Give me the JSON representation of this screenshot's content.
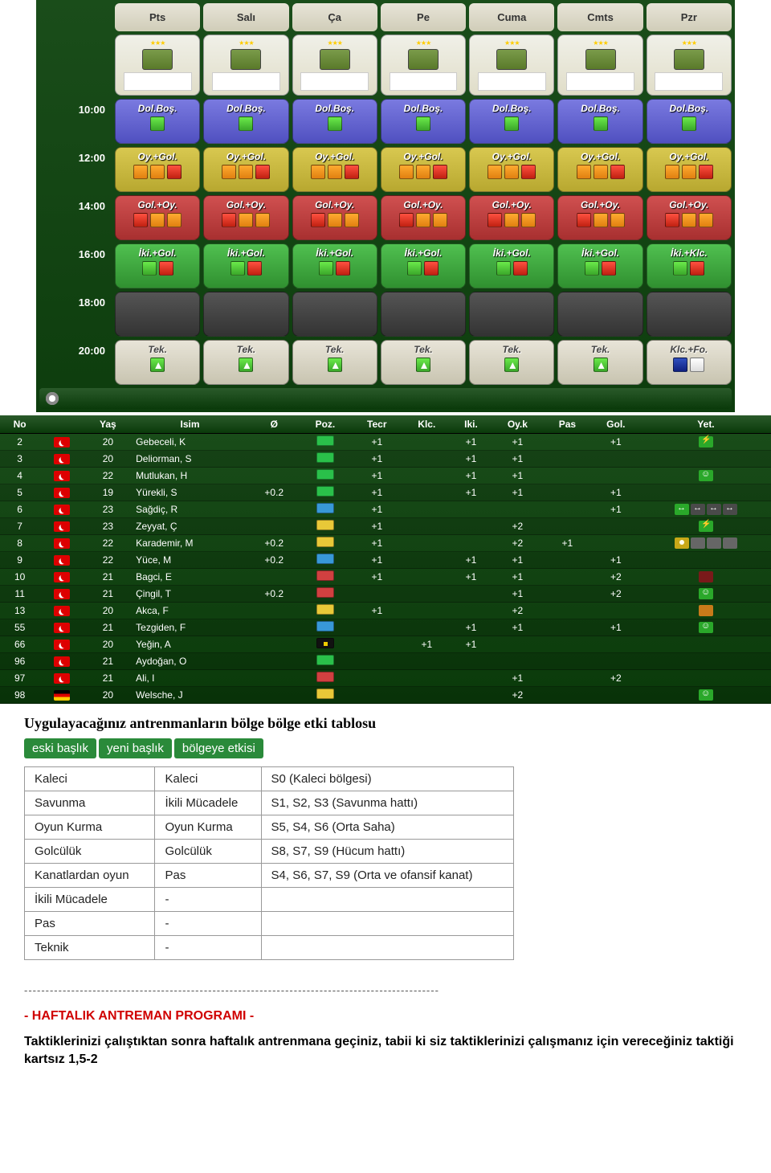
{
  "schedule": {
    "days": [
      "Pts",
      "Salı",
      "Ça",
      "Pe",
      "Cuma",
      "Cmts",
      "Pzr"
    ],
    "times": [
      "",
      "10:00",
      "12:00",
      "14:00",
      "16:00",
      "18:00",
      "20:00"
    ],
    "rows": [
      {
        "type": "card"
      },
      {
        "type": "slot",
        "style": "blue",
        "label": "Dol.Boş.",
        "icons": [
          "green"
        ],
        "labels": [
          "Dol.Boş.",
          "Dol.Boş.",
          "Dol.Boş.",
          "Dol.Boş.",
          "Dol.Boş.",
          "Dol.Boş.",
          "Dol.Boş."
        ]
      },
      {
        "type": "slot",
        "style": "yellow",
        "label": "Oy.+Gol.",
        "icons": [
          "orange",
          "orange",
          "red"
        ],
        "labels": [
          "Oy.+Gol.",
          "Oy.+Gol.",
          "Oy.+Gol.",
          "Oy.+Gol.",
          "Oy.+Gol.",
          "Oy.+Gol.",
          "Oy.+Gol."
        ]
      },
      {
        "type": "slot",
        "style": "red",
        "label": "Gol.+Oy.",
        "icons": [
          "red",
          "orange",
          "orange"
        ],
        "labels": [
          "Gol.+Oy.",
          "Gol.+Oy.",
          "Gol.+Oy.",
          "Gol.+Oy.",
          "Gol.+Oy.",
          "Gol.+Oy.",
          "Gol.+Oy."
        ]
      },
      {
        "type": "slot",
        "style": "green",
        "label": "İki.+Gol.",
        "icons": [
          "green",
          "red"
        ],
        "labels": [
          "İki.+Gol.",
          "İki.+Gol.",
          "İki.+Gol.",
          "İki.+Gol.",
          "İki.+Gol.",
          "İki.+Gol.",
          "İki.+Klc."
        ]
      },
      {
        "type": "slot",
        "style": "dark",
        "label": "",
        "icons": [],
        "labels": [
          "",
          "",
          "",
          "",
          "",
          "",
          ""
        ]
      },
      {
        "type": "slot",
        "style": "gray",
        "label": "Tek.",
        "icons": [
          "grn2"
        ],
        "labels": [
          "Tek.",
          "Tek.",
          "Tek.",
          "Tek.",
          "Tek.",
          "Tek.",
          "Klc.+Fo."
        ],
        "lastIcons": [
          "blue",
          "white"
        ]
      }
    ]
  },
  "players": {
    "headers": [
      "No",
      "",
      "Yaş",
      "Isim",
      "Ø",
      "Poz.",
      "Tecr",
      "Klc.",
      "Iki.",
      "Oy.k",
      "Pas",
      "Gol.",
      "Yet."
    ],
    "rows": [
      {
        "no": "2",
        "flag": "tr",
        "age": "20",
        "name": "Gebeceli, K",
        "avg": "",
        "pos": "grn",
        "tecr": "+1",
        "klc": "",
        "iki": "+1",
        "oyk": "+1",
        "pas": "",
        "gol": "+1",
        "yet": [
          [
            "sk-bolt"
          ]
        ]
      },
      {
        "no": "3",
        "flag": "tr",
        "age": "20",
        "name": "Deliorman, S",
        "avg": "",
        "pos": "grn",
        "tecr": "+1",
        "klc": "",
        "iki": "+1",
        "oyk": "+1",
        "pas": "",
        "gol": "",
        "yet": []
      },
      {
        "no": "4",
        "flag": "tr",
        "age": "22",
        "name": "Mutlukan, H",
        "avg": "",
        "pos": "grn",
        "tecr": "+1",
        "klc": "",
        "iki": "+1",
        "oyk": "+1",
        "pas": "",
        "gol": "",
        "yet": [
          [
            "sk-face"
          ]
        ]
      },
      {
        "no": "5",
        "flag": "tr",
        "age": "19",
        "name": "Yürekli, S",
        "avg": "+0.2",
        "pos": "grn",
        "tecr": "+1",
        "klc": "",
        "iki": "+1",
        "oyk": "+1",
        "pas": "",
        "gol": "+1",
        "yet": []
      },
      {
        "no": "6",
        "flag": "tr",
        "age": "23",
        "name": "Sağdiç, R",
        "avg": "",
        "pos": "blu",
        "tecr": "+1",
        "klc": "",
        "iki": "",
        "oyk": "",
        "pas": "",
        "gol": "+1",
        "yet": [
          [
            "sk-arr1"
          ],
          [
            "sk-arr"
          ],
          [
            "sk-arr"
          ],
          [
            "sk-arr"
          ]
        ]
      },
      {
        "no": "7",
        "flag": "tr",
        "age": "23",
        "name": "Zeyyat, Ç",
        "avg": "",
        "pos": "yel",
        "tecr": "+1",
        "klc": "",
        "iki": "",
        "oyk": "+2",
        "pas": "",
        "gol": "",
        "yet": [
          [
            "sk-bolt"
          ]
        ]
      },
      {
        "no": "8",
        "flag": "tr",
        "age": "22",
        "name": "Karademir, M",
        "avg": "+0.2",
        "pos": "yel",
        "tecr": "+1",
        "klc": "",
        "iki": "",
        "oyk": "+2",
        "pas": "+1",
        "gol": "",
        "yet": [
          [
            "sk-bulb"
          ],
          [
            "sk-gry"
          ],
          [
            "sk-gry"
          ],
          [
            "sk-gry"
          ]
        ]
      },
      {
        "no": "9",
        "flag": "tr",
        "age": "22",
        "name": "Yüce, M",
        "avg": "+0.2",
        "pos": "blu",
        "tecr": "+1",
        "klc": "",
        "iki": "+1",
        "oyk": "+1",
        "pas": "",
        "gol": "+1",
        "yet": []
      },
      {
        "no": "10",
        "flag": "tr",
        "age": "21",
        "name": "Bagci, E",
        "avg": "",
        "pos": "red",
        "tecr": "+1",
        "klc": "",
        "iki": "+1",
        "oyk": "+1",
        "pas": "",
        "gol": "+2",
        "yet": [
          [
            "sk-red"
          ]
        ]
      },
      {
        "no": "11",
        "flag": "tr",
        "age": "21",
        "name": "Çingil, T",
        "avg": "+0.2",
        "pos": "red",
        "tecr": "",
        "klc": "",
        "iki": "",
        "oyk": "+1",
        "pas": "",
        "gol": "+2",
        "yet": [
          [
            "sk-face"
          ]
        ]
      },
      {
        "no": "13",
        "flag": "tr",
        "age": "20",
        "name": "Akca, F",
        "avg": "",
        "pos": "yel",
        "tecr": "+1",
        "klc": "",
        "iki": "",
        "oyk": "+2",
        "pas": "",
        "gol": "",
        "yet": [
          [
            "sk-orng"
          ]
        ]
      },
      {
        "no": "55",
        "flag": "tr",
        "age": "21",
        "name": "Tezgiden, F",
        "avg": "",
        "pos": "blu",
        "tecr": "",
        "klc": "",
        "iki": "+1",
        "oyk": "+1",
        "pas": "",
        "gol": "+1",
        "yet": [
          [
            "sk-face"
          ]
        ]
      },
      {
        "no": "66",
        "flag": "tr",
        "age": "20",
        "name": "Yeğin, A",
        "avg": "",
        "pos": "blk",
        "tecr": "",
        "klc": "+1",
        "iki": "+1",
        "oyk": "",
        "pas": "",
        "gol": "",
        "yet": []
      },
      {
        "no": "96",
        "flag": "tr",
        "age": "21",
        "name": "Aydoğan, O",
        "avg": "",
        "pos": "grn",
        "tecr": "",
        "klc": "",
        "iki": "",
        "oyk": "",
        "pas": "",
        "gol": "",
        "yet": []
      },
      {
        "no": "97",
        "flag": "tr",
        "age": "21",
        "name": "Ali, I",
        "avg": "",
        "pos": "red",
        "tecr": "",
        "klc": "",
        "iki": "",
        "oyk": "+1",
        "pas": "",
        "gol": "+2",
        "yet": []
      },
      {
        "no": "98",
        "flag": "de",
        "age": "20",
        "name": "Welsche, J",
        "avg": "",
        "pos": "yel",
        "tecr": "",
        "klc": "",
        "iki": "",
        "oyk": "+2",
        "pas": "",
        "gol": "",
        "yet": [
          [
            "sk-face"
          ]
        ]
      }
    ]
  },
  "section": {
    "title": "Uygulayacağınız antrenmanların bölge bölge etki tablosu",
    "tags": [
      "eski başlık",
      "yeni başlık",
      "bölgeye etkisi"
    ]
  },
  "effect": {
    "rows": [
      [
        "Kaleci",
        "Kaleci",
        "S0 (Kaleci bölgesi)"
      ],
      [
        "Savunma",
        "İkili Mücadele",
        "S1, S2, S3 (Savunma hattı)"
      ],
      [
        "Oyun Kurma",
        "Oyun Kurma",
        "S5, S4, S6 (Orta Saha)"
      ],
      [
        "Golcülük",
        "Golcülük",
        "S8, S7, S9 (Hücum hattı)"
      ],
      [
        "Kanatlardan oyun",
        "Pas",
        "S4, S6, S7, S9 (Orta ve ofansif kanat)"
      ],
      [
        "İkili Mücadele",
        "-",
        ""
      ],
      [
        "Pas",
        "-",
        ""
      ],
      [
        "Teknik",
        "-",
        ""
      ]
    ]
  },
  "text": {
    "sep": "-------------------------------------------------------------------------------------------------",
    "h2": "- HAFTALIK ANTREMAN PROGRAMI -",
    "body": "Taktiklerinizi çalıştıktan sonra haftalık antrenmana geçiniz, tabii ki siz taktiklerinizi çalışmanız için vereceğiniz taktiği kartsız 1,5-2"
  }
}
